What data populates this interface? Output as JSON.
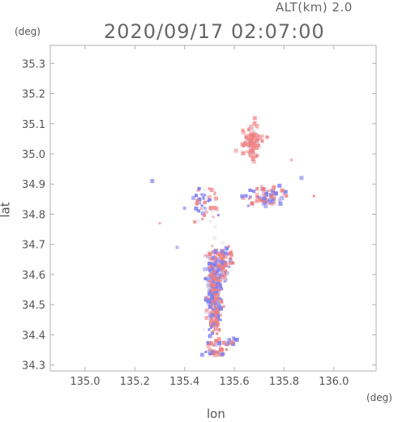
{
  "header": {
    "altitude_label": "ALT(km) 2.0",
    "datetime": "2020/09/17 02:07:00"
  },
  "chart_data": {
    "type": "scatter",
    "title": "2020/09/17 02:07:00",
    "subtitle": "ALT(km) 2.0",
    "xlabel": "lon",
    "ylabel": "lat",
    "x_unit": "(deg)",
    "y_unit": "(deg)",
    "xlim": [
      134.86,
      136.17
    ],
    "ylim": [
      34.28,
      35.36
    ],
    "x_ticks": [
      135.0,
      135.2,
      135.4,
      135.6,
      135.8,
      136.0
    ],
    "y_ticks": [
      34.3,
      34.4,
      34.5,
      34.6,
      34.7,
      34.8,
      34.9,
      35.0,
      35.1,
      35.2,
      35.3
    ],
    "x_tick_labels": [
      "135.0",
      "135.2",
      "135.4",
      "135.6",
      "135.8",
      "136.0"
    ],
    "y_tick_labels": [
      "34.3",
      "34.4",
      "34.5",
      "34.6",
      "34.7",
      "34.8",
      "34.9",
      "35.0",
      "35.1",
      "35.2",
      "35.3"
    ],
    "grid": false,
    "colors": {
      "positive": "#f08080",
      "negative": "#8080f0",
      "neutral": "#d8d8f0"
    },
    "clusters": [
      {
        "lon": 135.52,
        "lat": 34.52,
        "sd_lon": 0.025,
        "sd_lat": 0.12,
        "n": 380
      },
      {
        "lon": 135.54,
        "lat": 34.64,
        "sd_lon": 0.045,
        "sd_lat": 0.05,
        "n": 160
      },
      {
        "lon": 135.67,
        "lat": 35.04,
        "sd_lon": 0.035,
        "sd_lat": 0.05,
        "n": 110
      },
      {
        "lon": 135.73,
        "lat": 34.86,
        "sd_lon": 0.07,
        "sd_lat": 0.03,
        "n": 90
      },
      {
        "lon": 135.52,
        "lat": 34.34,
        "sd_lon": 0.04,
        "sd_lat": 0.01,
        "n": 40
      },
      {
        "lon": 135.48,
        "lat": 34.84,
        "sd_lon": 0.05,
        "sd_lat": 0.05,
        "n": 50
      },
      {
        "lon": 135.58,
        "lat": 34.38,
        "sd_lon": 0.02,
        "sd_lat": 0.01,
        "n": 20
      }
    ],
    "isolated_points": [
      {
        "lon": 135.27,
        "lat": 34.91,
        "value": -0.5
      },
      {
        "lon": 135.92,
        "lat": 34.86,
        "value": 0.7
      },
      {
        "lon": 135.3,
        "lat": 34.77,
        "value": 0.4
      },
      {
        "lon": 135.37,
        "lat": 34.69,
        "value": -0.3
      },
      {
        "lon": 135.83,
        "lat": 34.98,
        "value": 0.5
      },
      {
        "lon": 135.87,
        "lat": 34.92,
        "value": -0.4
      },
      {
        "lon": 135.4,
        "lat": 34.82,
        "value": -0.4
      }
    ]
  }
}
